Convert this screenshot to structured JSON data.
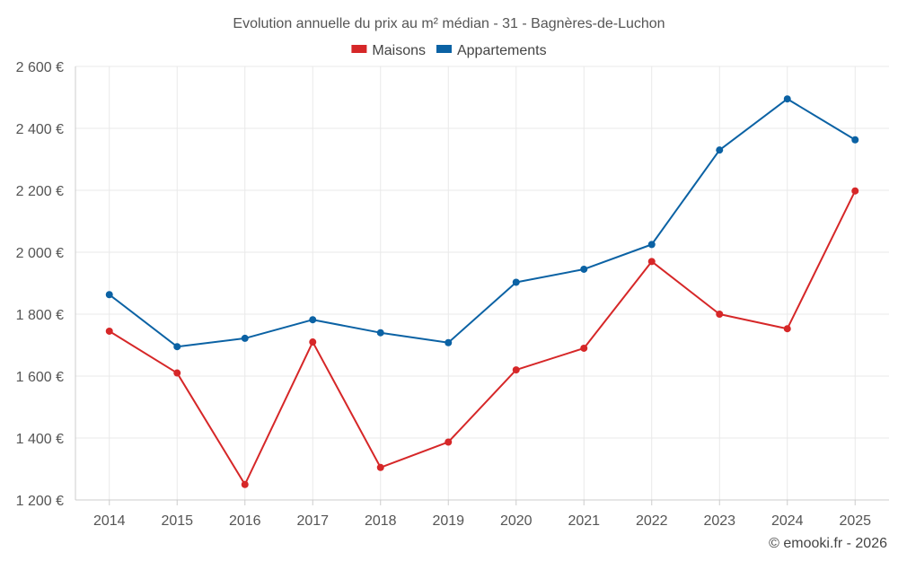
{
  "chart_data": {
    "type": "line",
    "title": "Evolution annuelle du prix au m² médian - 31 - Bagnères-de-Luchon",
    "categories": [
      "2014",
      "2015",
      "2016",
      "2017",
      "2018",
      "2019",
      "2020",
      "2021",
      "2022",
      "2023",
      "2024",
      "2025"
    ],
    "series": [
      {
        "name": "Maisons",
        "color": "#d62728",
        "values": [
          1745,
          1610,
          1250,
          1710,
          1305,
          1387,
          1620,
          1690,
          1970,
          1800,
          1753,
          2198
        ]
      },
      {
        "name": "Appartements",
        "color": "#0b62a4",
        "values": [
          1863,
          1695,
          1722,
          1782,
          1740,
          1708,
          1903,
          1945,
          2025,
          2330,
          2495,
          2363
        ]
      }
    ],
    "ylim": [
      1200,
      2600
    ],
    "yticks": [
      1200,
      1400,
      1600,
      1800,
      2000,
      2200,
      2400,
      2600
    ],
    "ytick_labels": [
      "1 200 €",
      "1 400 €",
      "1 600 €",
      "1 800 €",
      "2 000 €",
      "2 200 €",
      "2 400 €",
      "2 600 €"
    ],
    "grid": true,
    "legend_position": "top-center",
    "xlabel": "",
    "ylabel": ""
  },
  "credit": "© emooki.fr - 2026"
}
